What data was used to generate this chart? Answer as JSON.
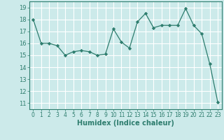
{
  "x": [
    0,
    1,
    2,
    3,
    4,
    5,
    6,
    7,
    8,
    9,
    10,
    11,
    12,
    13,
    14,
    15,
    16,
    17,
    18,
    19,
    20,
    21,
    22,
    23
  ],
  "y": [
    18,
    16,
    16,
    15.8,
    15,
    15.3,
    15.4,
    15.3,
    15,
    15.1,
    17.2,
    16.1,
    15.6,
    17.8,
    18.5,
    17.3,
    17.5,
    17.5,
    17.5,
    18.9,
    17.5,
    16.8,
    14.3,
    11.1
  ],
  "title": "",
  "xlabel": "Humidex (Indice chaleur)",
  "ylabel": "",
  "line_color": "#2e7d6e",
  "marker": "D",
  "marker_size": 2.2,
  "bg_color": "#cceaea",
  "grid_color": "#ffffff",
  "spine_color": "#2e7d6e",
  "ylim": [
    10.5,
    19.5
  ],
  "yticks": [
    11,
    12,
    13,
    14,
    15,
    16,
    17,
    18,
    19
  ],
  "xlim": [
    -0.5,
    23.5
  ],
  "xticks": [
    0,
    1,
    2,
    3,
    4,
    5,
    6,
    7,
    8,
    9,
    10,
    11,
    12,
    13,
    14,
    15,
    16,
    17,
    18,
    19,
    20,
    21,
    22,
    23
  ]
}
